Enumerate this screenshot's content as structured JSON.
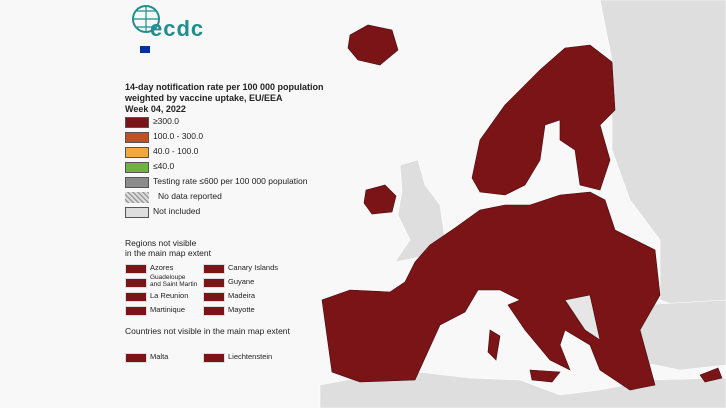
{
  "logo": {
    "text": "ecdc"
  },
  "legend": {
    "title_lines": [
      "14-day notification rate per 100 000 population",
      "weighted by vaccine uptake, EU/EEA",
      "Week 04, 2022"
    ],
    "items": [
      {
        "label": "≥300.0",
        "color": "#7b1416"
      },
      {
        "label": "100.0 - 300.0",
        "color": "#c4501d"
      },
      {
        "label": "40.0 - 100.0",
        "color": "#f2a93b"
      },
      {
        "label": "≤40.0",
        "color": "#6cb33f"
      },
      {
        "label": "Testing rate ≤600 per 100 000 population",
        "color": "#8c8c8c"
      },
      {
        "label": "No data reported",
        "color": "#9a9a9a",
        "pattern": "hatch"
      },
      {
        "label": "Not included",
        "color": "#dedede"
      }
    ]
  },
  "regions": {
    "title_lines": [
      "Regions not visible",
      "in the main map extent"
    ],
    "items": [
      {
        "label": "Azores",
        "color": "#7b1416"
      },
      {
        "label": "Canary Islands",
        "color": "#7b1416"
      },
      {
        "label": "Guadeloupe and Saint Martin",
        "color": "#7b1416"
      },
      {
        "label": "Guyane",
        "color": "#7b1416"
      },
      {
        "label": "La Reunion",
        "color": "#7b1416"
      },
      {
        "label": "Madeira",
        "color": "#7b1416"
      },
      {
        "label": "Martinique",
        "color": "#7b1416"
      },
      {
        "label": "Mayotte",
        "color": "#7b1416"
      }
    ]
  },
  "countries": {
    "title": "Countries not visible in the main map extent",
    "items": [
      {
        "label": "Malta",
        "color": "#7b1416"
      },
      {
        "label": "Liechtenstein",
        "color": "#7b1416"
      }
    ]
  }
}
